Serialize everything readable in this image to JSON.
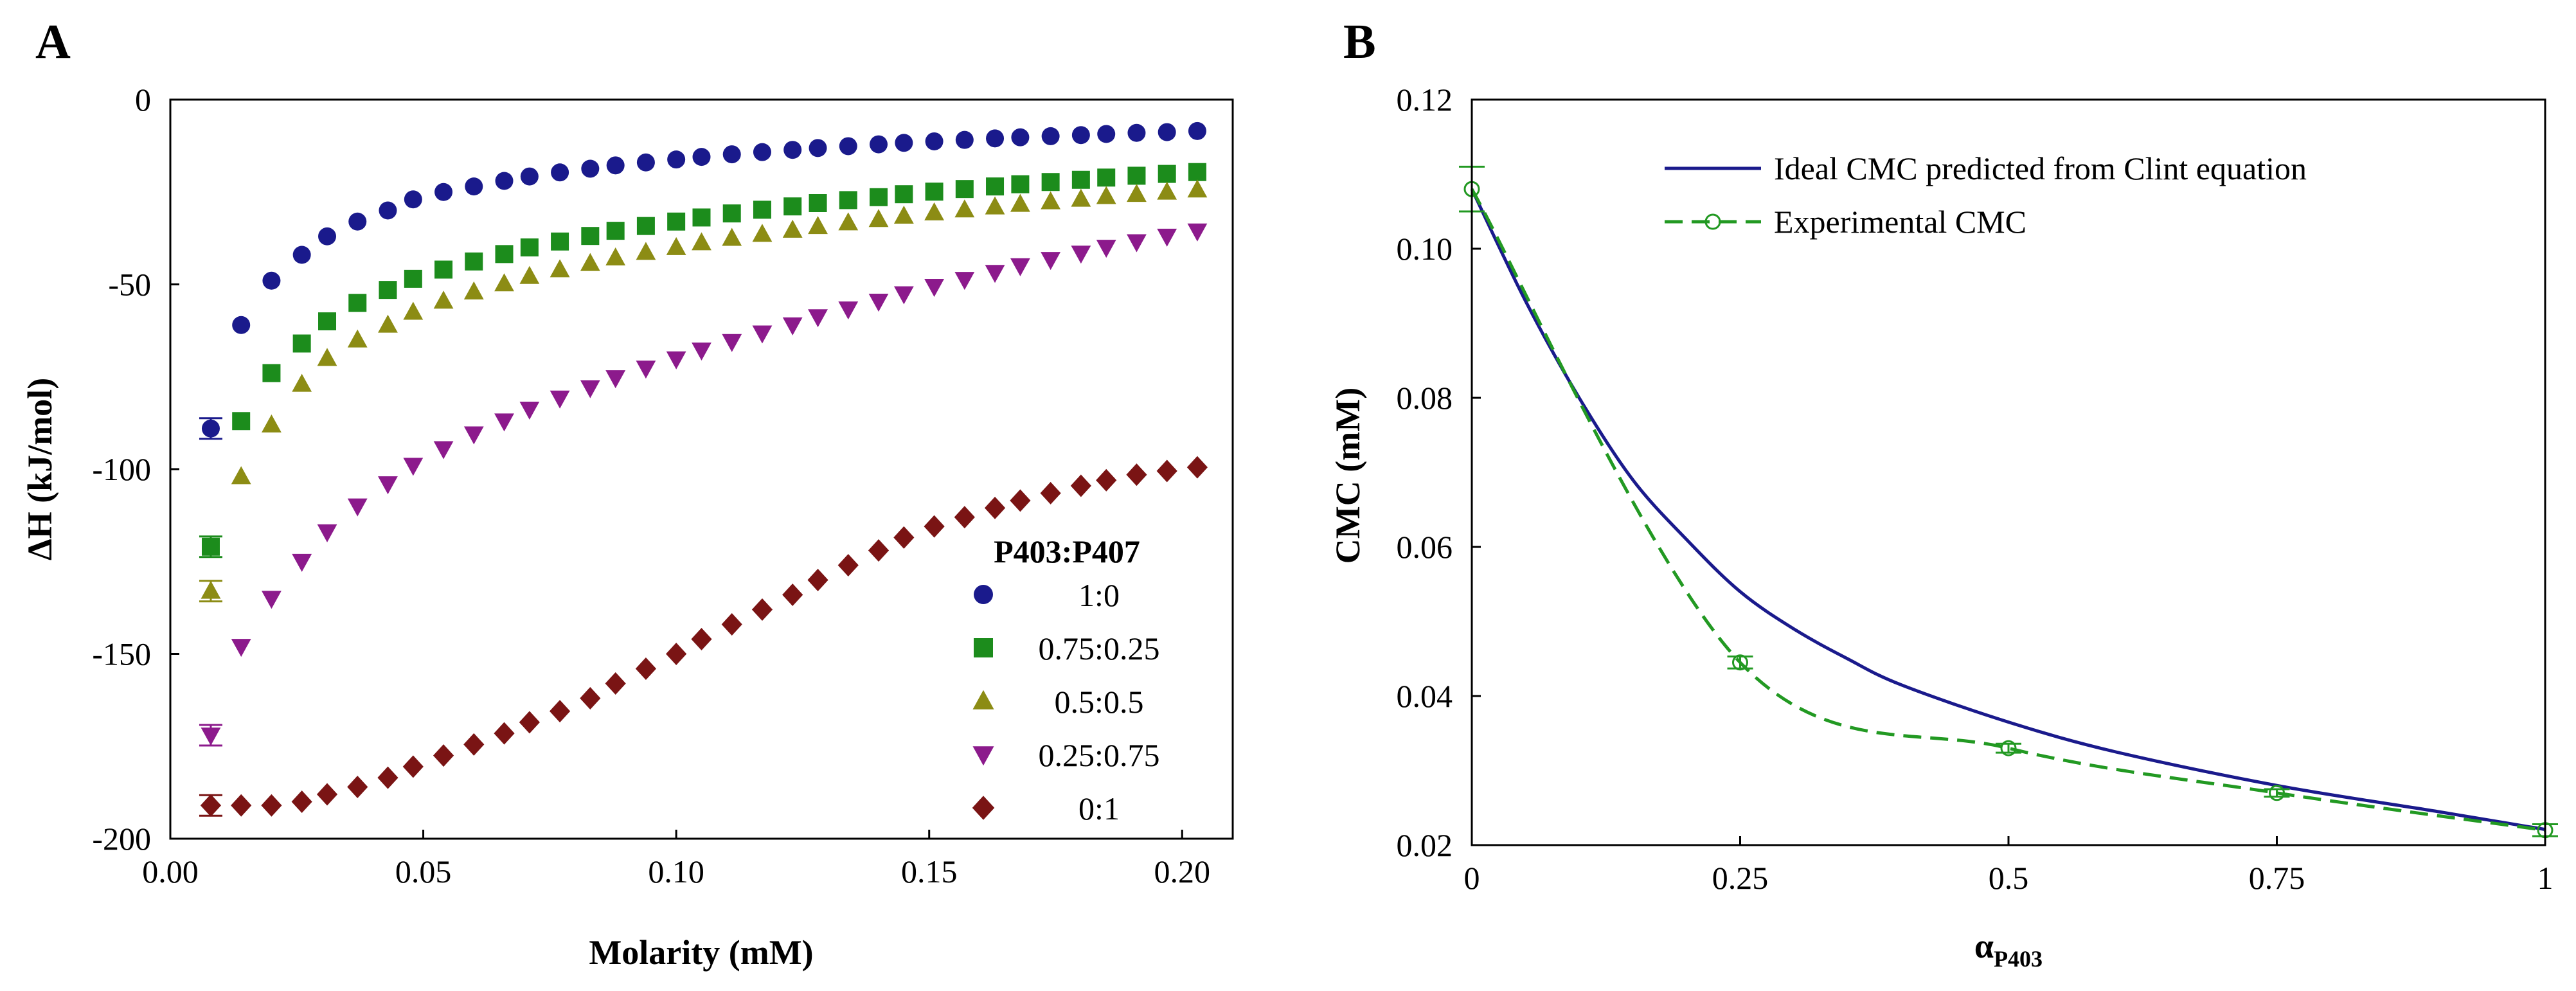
{
  "chart_data": [
    {
      "panel": "A",
      "type": "scatter",
      "xlabel": "Molarity (mM)",
      "ylabel": "ΔH (kJ/mol)",
      "xlim": [
        0,
        0.21
      ],
      "ylim": [
        -200,
        0
      ],
      "xticks": [
        "0.00",
        "0.05",
        "0.10",
        "0.15",
        "0.20"
      ],
      "xtick_values": [
        0,
        0.05,
        0.1,
        0.15,
        0.2
      ],
      "yticks": [
        "0",
        "-50",
        "-100",
        "-150",
        "-200"
      ],
      "ytick_values": [
        0,
        -50,
        -100,
        -150,
        -200
      ],
      "legend_title": "P403:P407",
      "legend_position": "bottom-right",
      "x": [
        0.008,
        0.014,
        0.02,
        0.026,
        0.031,
        0.037,
        0.043,
        0.048,
        0.054,
        0.06,
        0.066,
        0.071,
        0.077,
        0.083,
        0.088,
        0.094,
        0.1,
        0.105,
        0.111,
        0.117,
        0.123,
        0.128,
        0.134,
        0.14,
        0.145,
        0.151,
        0.157,
        0.163,
        0.168,
        0.174,
        0.18,
        0.185,
        0.191,
        0.197,
        0.203
      ],
      "series": [
        {
          "name": "1:0",
          "marker": "circle",
          "color": "#1a1a8c",
          "values": [
            -89,
            -61,
            -49,
            -42,
            -37,
            -33,
            -30,
            -27,
            -25,
            -23.5,
            -22,
            -20.8,
            -19.7,
            -18.7,
            -17.8,
            -17,
            -16.2,
            -15.5,
            -14.8,
            -14.2,
            -13.6,
            -13.1,
            -12.6,
            -12.1,
            -11.7,
            -11.3,
            -10.9,
            -10.5,
            -10.2,
            -9.9,
            -9.6,
            -9.3,
            -9,
            -8.8,
            -8.5
          ]
        },
        {
          "name": "0.75:0.25",
          "marker": "square",
          "color": "#1c8c1c",
          "values": [
            -121,
            -87,
            -74,
            -66,
            -60,
            -55,
            -51.5,
            -48.5,
            -46,
            -43.8,
            -41.8,
            -40,
            -38.4,
            -36.9,
            -35.5,
            -34.2,
            -33,
            -31.9,
            -30.8,
            -29.8,
            -28.9,
            -28,
            -27.2,
            -26.4,
            -25.6,
            -24.9,
            -24.2,
            -23.5,
            -22.9,
            -22.3,
            -21.7,
            -21.1,
            -20.6,
            -20.1,
            -19.6
          ]
        },
        {
          "name": "0.5:0.5",
          "marker": "triangle",
          "color": "#8c8c14",
          "values": [
            -133,
            -102,
            -88,
            -77,
            -70,
            -65,
            -61,
            -57.5,
            -54.5,
            -52,
            -49.8,
            -47.8,
            -46,
            -44.3,
            -42.8,
            -41.3,
            -40,
            -38.7,
            -37.5,
            -36.4,
            -35.3,
            -34.3,
            -33.3,
            -32.4,
            -31.5,
            -30.6,
            -29.8,
            -29,
            -28.3,
            -27.6,
            -26.9,
            -26.2,
            -25.6,
            -25,
            -24.4
          ]
        },
        {
          "name": "0.25:0.75",
          "marker": "triangle-down",
          "color": "#8c1a8c",
          "values": [
            -172,
            -148,
            -135,
            -125,
            -117,
            -110,
            -104,
            -99,
            -94.5,
            -90.5,
            -87,
            -83.8,
            -80.8,
            -78,
            -75.3,
            -72.7,
            -70.2,
            -67.8,
            -65.5,
            -63.2,
            -61,
            -58.8,
            -56.7,
            -54.6,
            -52.6,
            -50.6,
            -48.7,
            -46.8,
            -45,
            -43.3,
            -41.6,
            -40,
            -38.5,
            -37,
            -35.6
          ]
        },
        {
          "name": "0:1",
          "marker": "diamond",
          "color": "#7a1414",
          "values": [
            -191,
            -191,
            -191,
            -190,
            -188,
            -186,
            -183.5,
            -180.5,
            -177.5,
            -174.5,
            -171.5,
            -168.5,
            -165.5,
            -162,
            -158,
            -154,
            -150,
            -146,
            -142,
            -138,
            -134,
            -130,
            -126,
            -122,
            -118.5,
            -115.5,
            -113,
            -110.5,
            -108.5,
            -106.5,
            -104.5,
            -103,
            -101.5,
            -100.5,
            -99.5
          ]
        }
      ]
    },
    {
      "panel": "B",
      "type": "line",
      "xlabel": "α",
      "xlabel_sub": "P403",
      "ylabel": "CMC (mM)",
      "xlim": [
        0,
        1
      ],
      "ylim": [
        0.02,
        0.12
      ],
      "xticks": [
        "0",
        "0.25",
        "0.5",
        "0.75",
        "1"
      ],
      "xtick_values": [
        0,
        0.25,
        0.5,
        0.75,
        1
      ],
      "yticks": [
        "0.02",
        "0.04",
        "0.06",
        "0.08",
        "0.10",
        "0.12"
      ],
      "ytick_values": [
        0.02,
        0.04,
        0.06,
        0.08,
        0.1,
        0.12
      ],
      "legend_position": "top-right",
      "series": [
        {
          "name": "Ideal CMC predicted from Clint equation",
          "style": "solid",
          "color": "#1a1a8c",
          "x": [
            0,
            0.05,
            0.1,
            0.15,
            0.2,
            0.25,
            0.3,
            0.35,
            0.4,
            0.5,
            0.6,
            0.75,
            0.9,
            1
          ],
          "values": [
            0.108,
            0.093,
            0.08,
            0.069,
            0.061,
            0.054,
            0.049,
            0.045,
            0.0415,
            0.0365,
            0.0325,
            0.028,
            0.0245,
            0.0221
          ]
        },
        {
          "name": "Experimental CMC",
          "style": "dashed",
          "color": "#229922",
          "marker": "open-circle",
          "x": [
            0,
            0.25,
            0.5,
            0.75,
            1
          ],
          "values": [
            0.108,
            0.0445,
            0.033,
            0.027,
            0.022
          ],
          "errors": [
            0.003,
            0.0008,
            0.0006,
            0.0005,
            0.0008
          ]
        }
      ]
    }
  ]
}
